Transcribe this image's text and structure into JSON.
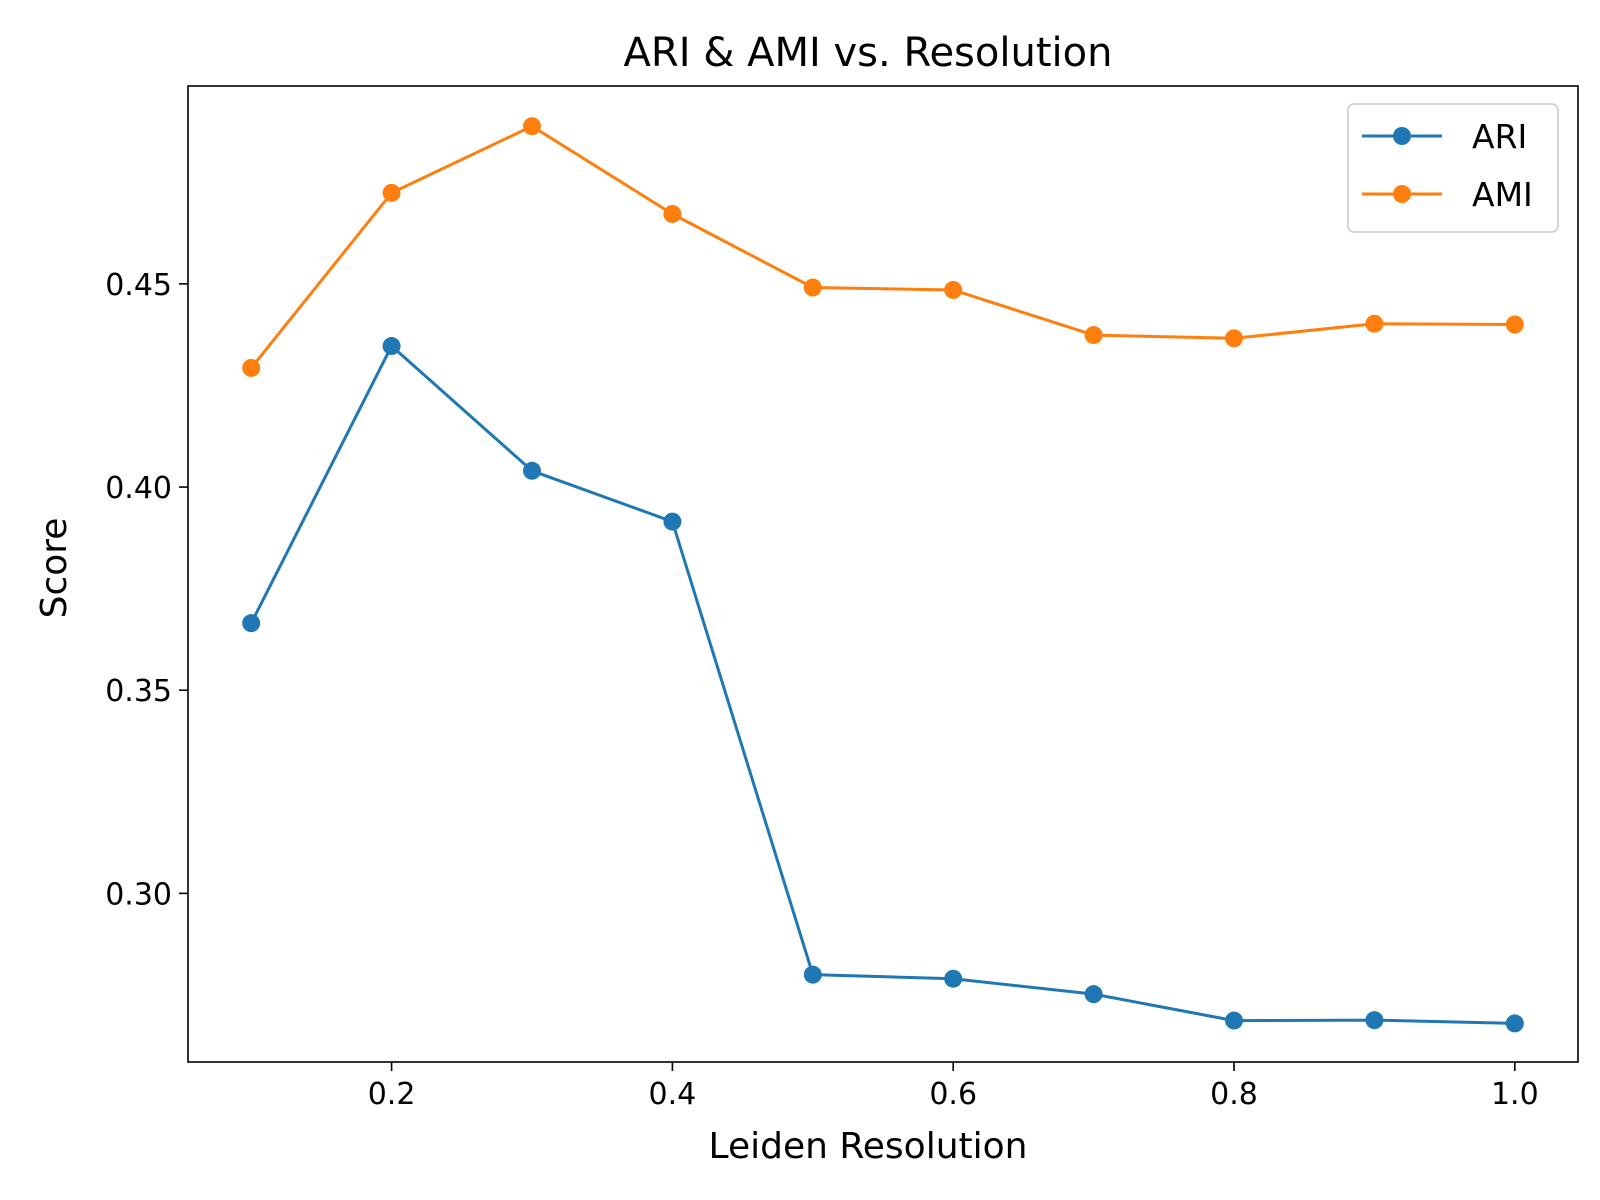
{
  "chart_data": {
    "type": "line",
    "title": "ARI & AMI vs. Resolution",
    "xlabel": "Leiden Resolution",
    "ylabel": "Score",
    "x": [
      0.1,
      0.2,
      0.3,
      0.4,
      0.5,
      0.6,
      0.7,
      0.8,
      0.9,
      1.0
    ],
    "xlim": [
      0.055,
      1.045
    ],
    "ylim": [
      0.2585,
      0.4987
    ],
    "xticks": [
      {
        "value": 0.2,
        "label": "0.2"
      },
      {
        "value": 0.4,
        "label": "0.4"
      },
      {
        "value": 0.6,
        "label": "0.6"
      },
      {
        "value": 0.8,
        "label": "0.8"
      },
      {
        "value": 1.0,
        "label": "1.0"
      }
    ],
    "yticks": [
      {
        "value": 0.3,
        "label": "0.30"
      },
      {
        "value": 0.35,
        "label": "0.35"
      },
      {
        "value": 0.4,
        "label": "0.40"
      },
      {
        "value": 0.45,
        "label": "0.45"
      }
    ],
    "grid": false,
    "legend": "top-right",
    "series": [
      {
        "name": "ARI",
        "color": "#1f77b4",
        "values": [
          0.3665,
          0.4347,
          0.404,
          0.3915,
          0.28,
          0.279,
          0.2752,
          0.2687,
          0.2688,
          0.268
        ]
      },
      {
        "name": "AMI",
        "color": "#ff7f0e",
        "values": [
          0.4293,
          0.4724,
          0.4888,
          0.4672,
          0.4491,
          0.4485,
          0.4374,
          0.4366,
          0.4402,
          0.44
        ]
      }
    ]
  }
}
